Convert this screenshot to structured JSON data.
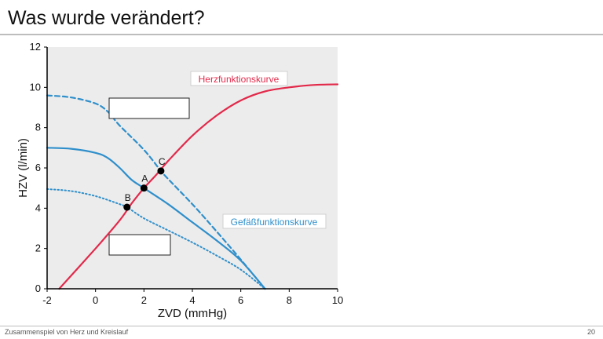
{
  "slide": {
    "title": "Was wurde verändert?",
    "footer": "Zusammenspiel von Herz und Kreislauf",
    "page_number": "20"
  },
  "chart_data": {
    "type": "line",
    "xlabel": "ZVD (mmHg)",
    "ylabel": "HZV (l/min)",
    "xlim": [
      -2,
      10
    ],
    "ylim": [
      0,
      12
    ],
    "x_ticks": [
      -2,
      0,
      2,
      4,
      6,
      8,
      10
    ],
    "y_ticks": [
      0,
      2,
      4,
      6,
      8,
      10,
      12
    ],
    "x_tick_labels": [
      "-2",
      "0",
      "2",
      "4",
      "6",
      "8",
      "10"
    ],
    "y_tick_labels": [
      "0",
      "2",
      "4",
      "6",
      "8",
      "10",
      "12"
    ],
    "grid": false,
    "background_color": "#ececec",
    "series": [
      {
        "name": "Herzfunktionskurve",
        "color": "#e2294a",
        "style": "solid",
        "points": [
          [
            -1.5,
            0
          ],
          [
            0,
            2
          ],
          [
            1,
            3.4
          ],
          [
            1.5,
            4.25
          ],
          [
            2,
            5
          ],
          [
            2.5,
            5.65
          ],
          [
            3,
            6.35
          ],
          [
            4,
            7.6
          ],
          [
            5,
            8.6
          ],
          [
            6,
            9.35
          ],
          [
            7,
            9.8
          ],
          [
            8,
            10.0
          ],
          [
            9,
            10.12
          ],
          [
            10,
            10.15
          ]
        ]
      },
      {
        "name": "Gefäßfunktionskurve",
        "color": "#2f8fcb",
        "style": "solid",
        "points": [
          [
            -2,
            7.0
          ],
          [
            -1,
            6.95
          ],
          [
            0,
            6.75
          ],
          [
            0.5,
            6.5
          ],
          [
            1,
            6.0
          ],
          [
            1.5,
            5.4
          ],
          [
            2,
            5.0
          ],
          [
            3,
            4.2
          ],
          [
            4,
            3.3
          ],
          [
            5,
            2.4
          ],
          [
            6,
            1.4
          ],
          [
            7,
            0
          ]
        ]
      },
      {
        "color": "#2f8fcb",
        "style": "dashed",
        "points": [
          [
            -2,
            9.6
          ],
          [
            -1,
            9.5
          ],
          [
            0,
            9.2
          ],
          [
            0.5,
            8.8
          ],
          [
            1,
            8.1
          ],
          [
            2,
            6.9
          ],
          [
            2.7,
            5.85
          ],
          [
            3,
            5.45
          ],
          [
            4,
            4.2
          ],
          [
            5,
            2.85
          ],
          [
            6,
            1.45
          ],
          [
            7,
            0
          ]
        ]
      },
      {
        "color": "#2f8fcb",
        "style": "dotted",
        "points": [
          [
            -2,
            4.95
          ],
          [
            -1,
            4.85
          ],
          [
            0,
            4.6
          ],
          [
            1,
            4.2
          ],
          [
            1.3,
            4.05
          ],
          [
            2,
            3.5
          ],
          [
            3,
            2.9
          ],
          [
            4,
            2.3
          ],
          [
            5,
            1.65
          ],
          [
            6,
            0.95
          ],
          [
            7,
            0
          ]
        ]
      }
    ],
    "points": [
      {
        "label": "A",
        "x": 2,
        "y": 5.0
      },
      {
        "label": "B",
        "x": 1.3,
        "y": 4.05
      },
      {
        "label": "C",
        "x": 2.7,
        "y": 5.85
      }
    ],
    "annotations": {
      "herz_label": "Herzfunktionskurve",
      "herz_color": "#e2294a",
      "gefaess_label": "Gefäßfunktionskurve",
      "gefaess_color": "#2f8fcb"
    },
    "blank_boxes": 2
  }
}
